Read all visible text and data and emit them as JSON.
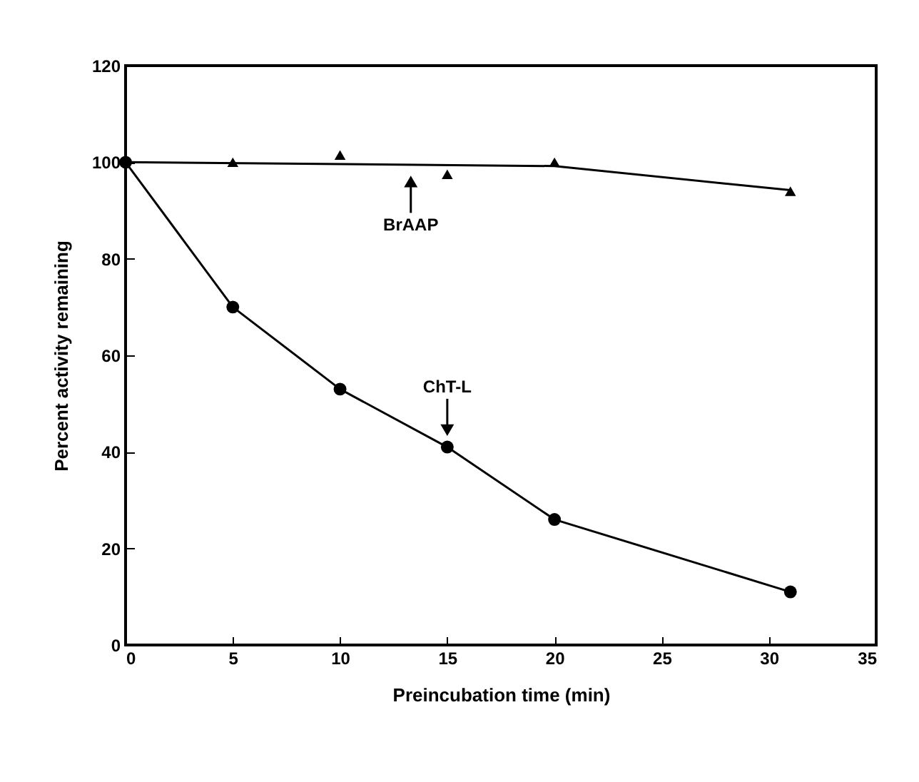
{
  "chart_data": {
    "type": "line",
    "xlabel": "Preincubation time (min)",
    "ylabel": "Percent activity remaining",
    "xlim": [
      0,
      35
    ],
    "xticks": [
      0,
      5,
      10,
      15,
      20,
      25,
      30,
      35
    ],
    "ylim": [
      0,
      120
    ],
    "yticks": [
      0,
      20,
      40,
      60,
      80,
      100,
      120
    ],
    "grid": false,
    "series": [
      {
        "type": "line",
        "marker": "circle",
        "color": "#000000",
        "x": [
          0,
          5,
          10,
          15,
          20,
          31
        ],
        "values": [
          100,
          70,
          53,
          41,
          26,
          11
        ]
      },
      {
        "type": "scatter",
        "marker": "triangle",
        "color": "#000000",
        "x": [
          5,
          10,
          15,
          20,
          31
        ],
        "values": [
          100,
          101.5,
          97.5,
          100,
          94
        ]
      },
      {
        "type": "line",
        "marker": "none",
        "color": "#000000",
        "x": [
          0,
          20,
          31
        ],
        "values": [
          100,
          99.2,
          94.2
        ]
      }
    ],
    "annotations": [
      {
        "text": "BrAAP",
        "x": 13.3,
        "y": 99.5
      },
      {
        "text": "ChT-L",
        "x": 15,
        "y": 41
      }
    ]
  }
}
